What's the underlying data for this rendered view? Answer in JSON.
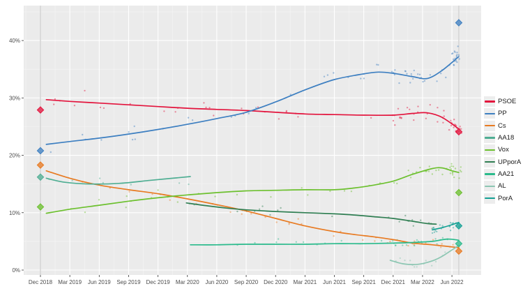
{
  "chart_data": {
    "type": "scatter",
    "title": "",
    "xlabel": "",
    "ylabel": "",
    "x_axis": {
      "ticks": [
        {
          "label": "Dec 2018",
          "month": 0
        },
        {
          "label": "Mar 2019",
          "month": 3
        },
        {
          "label": "Jun 2019",
          "month": 6
        },
        {
          "label": "Sep 2019",
          "month": 9
        },
        {
          "label": "Dec 2019",
          "month": 12
        },
        {
          "label": "Mar 2020",
          "month": 15
        },
        {
          "label": "Jun 2020",
          "month": 18
        },
        {
          "label": "Sep 2020",
          "month": 21
        },
        {
          "label": "Dec 2020",
          "month": 24
        },
        {
          "label": "Mar 2021",
          "month": 27
        },
        {
          "label": "Jun 2021",
          "month": 30
        },
        {
          "label": "Sep 2021",
          "month": 33
        },
        {
          "label": "Dec 2021",
          "month": 36
        },
        {
          "label": "Mar 2022",
          "month": 39
        },
        {
          "label": "Jun 2022",
          "month": 42
        }
      ]
    },
    "y_axis": {
      "ticks": [
        {
          "label": "0%",
          "value": 0
        },
        {
          "label": "10%",
          "value": 10
        },
        {
          "label": "20%",
          "value": 20
        },
        {
          "label": "30%",
          "value": 30
        },
        {
          "label": "40%",
          "value": 40
        }
      ],
      "minor_values": [
        5,
        15,
        25,
        35,
        45
      ]
    },
    "election_months": [
      0,
      42.7
    ],
    "scatter_seed": 20220619,
    "series": [
      {
        "name": "PSOE",
        "color": "#e3133c",
        "trend": [
          [
            0.6,
            29.7
          ],
          [
            3,
            29.4
          ],
          [
            6,
            29.1
          ],
          [
            9,
            28.8
          ],
          [
            12,
            28.5
          ],
          [
            15,
            28.2
          ],
          [
            18,
            28.0
          ],
          [
            21,
            27.8
          ],
          [
            24,
            27.5
          ],
          [
            27,
            27.2
          ],
          [
            30,
            27.1
          ],
          [
            33,
            27.0
          ],
          [
            36,
            27.0
          ],
          [
            38,
            27.3
          ],
          [
            39.5,
            27.4
          ],
          [
            41,
            26.6
          ],
          [
            42.7,
            24.6
          ]
        ],
        "results": [
          [
            0,
            27.9
          ],
          [
            42.7,
            24.1
          ]
        ],
        "scatter": [
          [
            0.8,
            36,
            26,
            1.6
          ],
          [
            36,
            41.8,
            24,
            1.4
          ],
          [
            41.8,
            43,
            18,
            1.1
          ]
        ]
      },
      {
        "name": "PP",
        "color": "#3d7fc1",
        "trend": [
          [
            0.6,
            21.9
          ],
          [
            3,
            22.4
          ],
          [
            6,
            23.0
          ],
          [
            9,
            23.7
          ],
          [
            12,
            24.5
          ],
          [
            15,
            25.4
          ],
          [
            18,
            26.4
          ],
          [
            21,
            27.5
          ],
          [
            24,
            29.3
          ],
          [
            27,
            31.4
          ],
          [
            30,
            33.2
          ],
          [
            33,
            34.2
          ],
          [
            34.5,
            34.5
          ],
          [
            36,
            34.3
          ],
          [
            38,
            33.7
          ],
          [
            39.5,
            33.4
          ],
          [
            41,
            34.8
          ],
          [
            42.7,
            37.2
          ]
        ],
        "results": [
          [
            0,
            20.8
          ],
          [
            42.7,
            43.1
          ]
        ],
        "scatter": [
          [
            0.8,
            36,
            26,
            1.8
          ],
          [
            36,
            41.8,
            24,
            1.4
          ],
          [
            41.8,
            43,
            18,
            1.6
          ]
        ]
      },
      {
        "name": "Cs",
        "color": "#e87a21",
        "trend": [
          [
            0.6,
            17.3
          ],
          [
            3,
            16.0
          ],
          [
            6,
            14.8
          ],
          [
            9,
            14.0
          ],
          [
            12,
            13.3
          ],
          [
            15,
            12.4
          ],
          [
            18,
            11.4
          ],
          [
            21,
            10.3
          ],
          [
            24,
            9.0
          ],
          [
            27,
            7.7
          ],
          [
            30,
            6.7
          ],
          [
            32,
            6.2
          ],
          [
            34,
            5.8
          ],
          [
            36,
            5.3
          ],
          [
            38,
            4.7
          ],
          [
            40,
            4.4
          ],
          [
            42.7,
            3.9
          ]
        ],
        "results": [
          [
            0,
            18.3
          ],
          [
            42.7,
            3.3
          ]
        ],
        "scatter": [
          [
            0.8,
            34,
            20,
            1.4
          ],
          [
            34,
            43,
            16,
            1.0
          ]
        ]
      },
      {
        "name": "AA18",
        "color": "#4fae93",
        "trend": [
          [
            0.6,
            16.0
          ],
          [
            2.5,
            15.3
          ],
          [
            5,
            15.0
          ],
          [
            8,
            15.1
          ],
          [
            11,
            15.6
          ],
          [
            13.5,
            16.0
          ],
          [
            15.3,
            16.3
          ]
        ],
        "results": [
          [
            0,
            16.2
          ]
        ],
        "scatter": [
          [
            0.8,
            15.3,
            7,
            1.1
          ]
        ]
      },
      {
        "name": "Vox",
        "color": "#6cc02e",
        "trend": [
          [
            0.6,
            9.9
          ],
          [
            3,
            10.6
          ],
          [
            6,
            11.3
          ],
          [
            9,
            12.0
          ],
          [
            12,
            12.6
          ],
          [
            15,
            13.1
          ],
          [
            18,
            13.5
          ],
          [
            21,
            13.8
          ],
          [
            24,
            13.9
          ],
          [
            27,
            14.0
          ],
          [
            30,
            14.0
          ],
          [
            32,
            14.3
          ],
          [
            34,
            14.8
          ],
          [
            36,
            15.5
          ],
          [
            38,
            16.7
          ],
          [
            40,
            17.7
          ],
          [
            41,
            17.8
          ],
          [
            42,
            17.3
          ],
          [
            42.7,
            17.0
          ]
        ],
        "results": [
          [
            0,
            11.0
          ],
          [
            42.7,
            13.5
          ]
        ],
        "scatter": [
          [
            0.8,
            36,
            22,
            1.5
          ],
          [
            36,
            41.8,
            18,
            1.3
          ],
          [
            41.8,
            43,
            14,
            1.1
          ]
        ]
      },
      {
        "name": "UPporA",
        "color": "#2f7e52",
        "trend": [
          [
            14.9,
            11.7
          ],
          [
            17,
            11.2
          ],
          [
            19,
            10.8
          ],
          [
            21,
            10.5
          ],
          [
            24,
            10.2
          ],
          [
            27,
            10.0
          ],
          [
            30,
            9.8
          ],
          [
            32,
            9.6
          ],
          [
            34,
            9.3
          ],
          [
            36,
            9.0
          ],
          [
            38,
            8.5
          ],
          [
            39.5,
            8.1
          ],
          [
            40.4,
            8.0
          ]
        ],
        "results": [],
        "scatter": [
          [
            15,
            36,
            13,
            1.2
          ],
          [
            36,
            40.6,
            11,
            1.0
          ]
        ]
      },
      {
        "name": "AA21",
        "color": "#2bbb8c",
        "trend": [
          [
            15.3,
            4.4
          ],
          [
            18,
            4.4
          ],
          [
            21,
            4.5
          ],
          [
            24,
            4.5
          ],
          [
            27,
            4.5
          ],
          [
            30,
            4.6
          ],
          [
            33,
            4.6
          ],
          [
            36,
            4.7
          ],
          [
            38,
            4.8
          ],
          [
            40,
            5.0
          ],
          [
            41.5,
            5.4
          ],
          [
            42.7,
            5.2
          ]
        ],
        "results": [
          [
            42.7,
            4.6
          ]
        ],
        "scatter": [
          [
            15.5,
            36,
            11,
            0.9
          ],
          [
            36,
            43,
            18,
            0.9
          ]
        ]
      },
      {
        "name": "AL",
        "color": "#8cc6b2",
        "trend": [
          [
            35.7,
            1.7
          ],
          [
            37,
            1.1
          ],
          [
            38.5,
            1.0
          ],
          [
            40,
            1.6
          ],
          [
            41,
            2.4
          ],
          [
            42,
            3.5
          ],
          [
            42.7,
            4.3
          ]
        ],
        "results": [],
        "scatter": [
          [
            36,
            43,
            13,
            0.9
          ]
        ]
      },
      {
        "name": "PorA",
        "color": "#13a094",
        "trend": [
          [
            40,
            7.0
          ],
          [
            41,
            7.4
          ],
          [
            42,
            7.9
          ],
          [
            42.7,
            8.3
          ]
        ],
        "results": [
          [
            42.7,
            7.7
          ]
        ],
        "scatter": [
          [
            40,
            43,
            20,
            0.8
          ]
        ]
      }
    ],
    "style": {
      "panel_bg": "#ebebeb",
      "grid_major": "#ffffff",
      "grid_minor": "#f4f4f4",
      "axis_text": "#4d4d4d",
      "tick_mark": "#333333",
      "election_line": "#d6d6d6",
      "legend_key_bg": "#ededed",
      "legend_text": "#1a1a1a"
    }
  }
}
